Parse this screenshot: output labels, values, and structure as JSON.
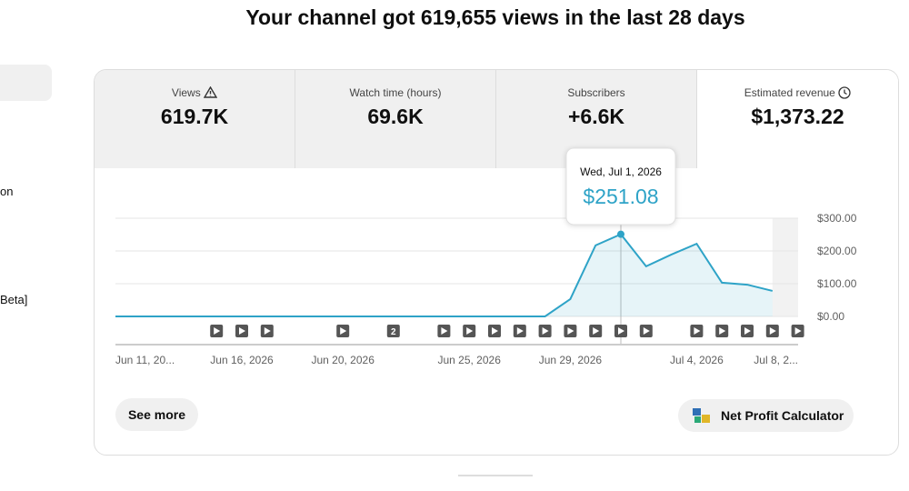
{
  "header": {
    "title": "Your channel got 619,655 views in the last 28 days"
  },
  "sidebar": {
    "items": [
      "on",
      "Beta]"
    ]
  },
  "metrics": [
    {
      "label": "Views",
      "value": "619.7K"
    },
    {
      "label": "Watch time (hours)",
      "value": "69.6K"
    },
    {
      "label": "Subscribers",
      "value": "+6.6K"
    },
    {
      "label": "Estimated revenue",
      "value": "$1,373.22"
    }
  ],
  "chart_data": {
    "type": "area",
    "color": "#2ea3c7",
    "categories": [
      "Jun 11, 20...",
      null,
      null,
      null,
      null,
      "Jun 16, 2026",
      null,
      null,
      null,
      "Jun 20, 2026",
      null,
      null,
      null,
      null,
      "Jun 25, 2026",
      null,
      null,
      null,
      "Jun 29, 2026",
      null,
      null,
      null,
      null,
      "Jul 4, 2026",
      null,
      null,
      null,
      "Jul 8, 2..."
    ],
    "values": [
      0,
      0,
      0,
      0,
      0,
      0,
      0,
      0,
      0,
      0,
      0,
      0,
      0,
      0,
      0,
      0,
      0,
      0,
      53,
      217,
      251.08,
      153,
      189,
      222,
      103,
      97,
      78,
      null
    ],
    "value_labels": [
      null,
      null,
      null,
      null,
      null,
      null,
      null,
      null,
      null,
      null,
      null,
      null,
      null,
      null,
      null,
      null,
      null,
      null,
      null,
      null,
      "$251.08",
      null,
      null,
      null,
      null,
      null,
      null,
      null
    ],
    "tooltip_date": "Wed, Jul 1, 2026",
    "video_marker_label": "2",
    "ylim": [
      0,
      300
    ],
    "yticks": [
      {
        "value": 0,
        "label": "$0.00"
      },
      {
        "value": 100,
        "label": "$100.00"
      },
      {
        "value": 200,
        "label": "$200.00"
      },
      {
        "value": 300,
        "label": "$300.00"
      }
    ],
    "grid": true
  },
  "buttons": {
    "see_more": "See more",
    "calculator": "Net Profit Calculator"
  }
}
